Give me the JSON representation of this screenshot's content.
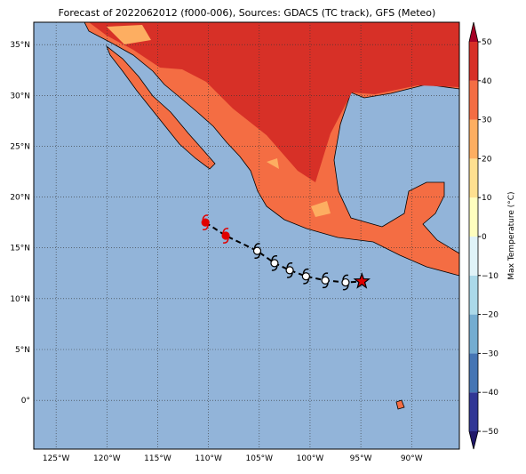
{
  "chart_data": {
    "type": "map",
    "title": "Forecast of 2022062012 (f000-006), Sources: GDACS (TC track), GFS (Meteo)",
    "xlim": [
      -127.2,
      -85.3
    ],
    "ylim": [
      -4.8,
      37.2
    ],
    "xticks": [
      {
        "value": -125,
        "label": "125°W"
      },
      {
        "value": -120,
        "label": "120°W"
      },
      {
        "value": -115,
        "label": "115°W"
      },
      {
        "value": -110,
        "label": "110°W"
      },
      {
        "value": -105,
        "label": "105°W"
      },
      {
        "value": -100,
        "label": "100°W"
      },
      {
        "value": -95,
        "label": "95°W"
      },
      {
        "value": -90,
        "label": "90°W"
      }
    ],
    "yticks": [
      {
        "value": 0,
        "label": "0°"
      },
      {
        "value": 5,
        "label": "5°N"
      },
      {
        "value": 10,
        "label": "10°N"
      },
      {
        "value": 15,
        "label": "15°N"
      },
      {
        "value": 20,
        "label": "20°N"
      },
      {
        "value": 25,
        "label": "25°N"
      },
      {
        "value": 30,
        "label": "30°N"
      },
      {
        "value": 35,
        "label": "35°N"
      }
    ],
    "grid": true,
    "track": {
      "x": [
        -110.3,
        -108.3,
        -105.2,
        -103.5,
        -102.0,
        -100.4,
        -98.5,
        -96.5,
        -94.9
      ],
      "y": [
        17.5,
        16.2,
        14.7,
        13.5,
        12.8,
        12.2,
        11.8,
        11.6,
        11.7
      ],
      "colors": [
        "#e00000",
        "#e00000",
        "#ffffff",
        "#ffffff",
        "#ffffff",
        "#ffffff",
        "#ffffff",
        "#ffffff",
        "#e00000"
      ]
    },
    "colorbar": {
      "label": "Max Temperature (°C)",
      "ticks": [
        {
          "value": -50,
          "label": "−50"
        },
        {
          "value": -40,
          "label": "−40"
        },
        {
          "value": -30,
          "label": "−30"
        },
        {
          "value": -20,
          "label": "−20"
        },
        {
          "value": -10,
          "label": "−10"
        },
        0,
        10,
        20,
        30,
        40,
        50
      ],
      "colors": [
        "#313695",
        "#4575b4",
        "#74add1",
        "#abd9e9",
        "#e0f3f8",
        "#ffffbf",
        "#fee090",
        "#fdae61",
        "#f46d43",
        "#d73027"
      ],
      "under": "#20186a",
      "over": "#a50026"
    }
  }
}
